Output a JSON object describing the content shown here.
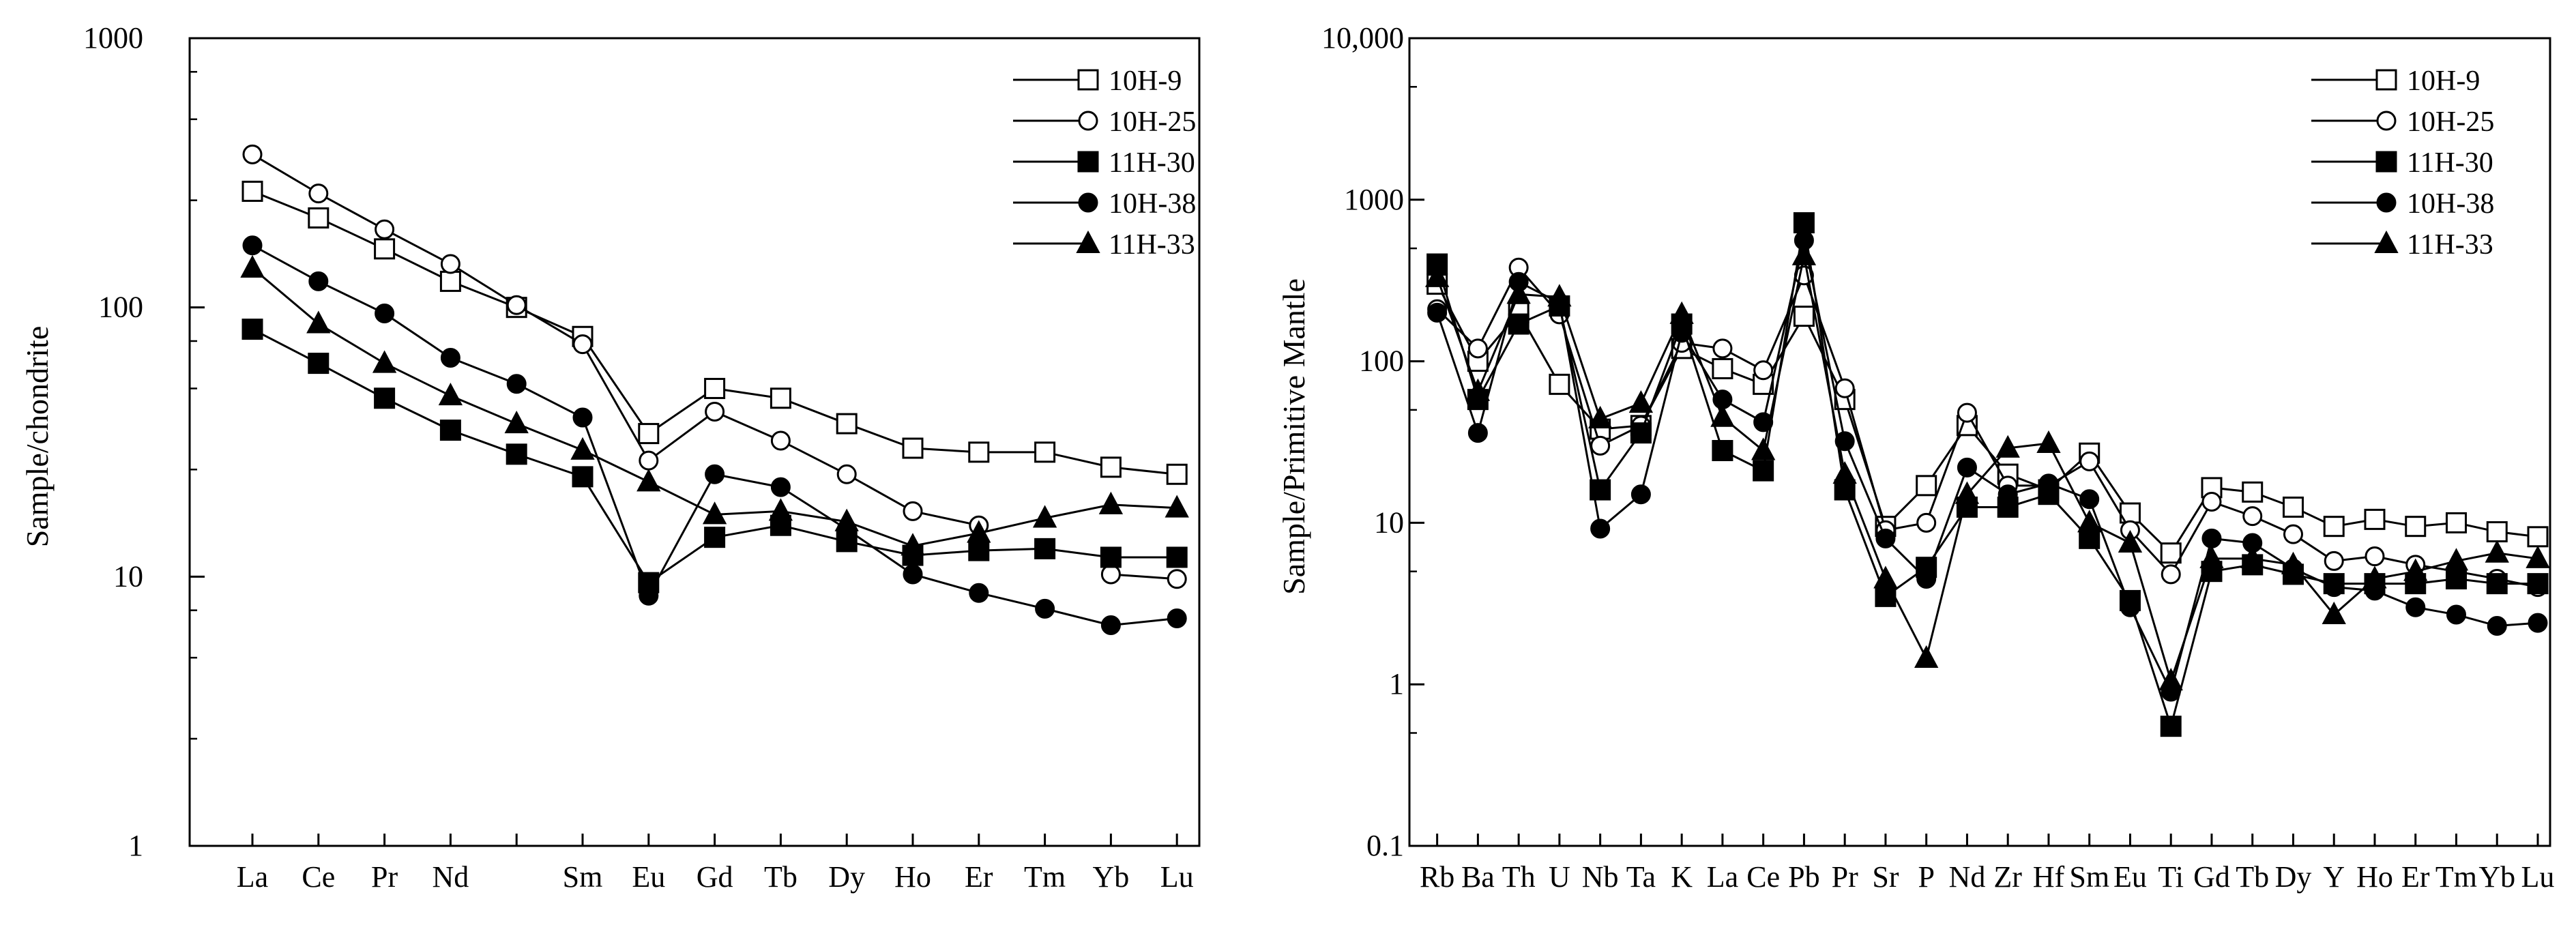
{
  "chart_data": [
    {
      "type": "line",
      "id": "ree",
      "title": "",
      "xlabel": "",
      "ylabel": "Sample/chondrite",
      "yscale": "log",
      "ylim": [
        1,
        1000
      ],
      "ytick_labels": [
        "1",
        "10",
        "100",
        "1000"
      ],
      "categories": [
        "La",
        "Ce",
        "Pr",
        "Nd",
        "",
        "Sm",
        "Eu",
        "Gd",
        "Tb",
        "Dy",
        "Ho",
        "Er",
        "Tm",
        "Yb",
        "Lu"
      ],
      "legend_position": "top-right",
      "series": [
        {
          "name": "10H-9",
          "marker": "open-square",
          "values": [
            270,
            215,
            165,
            125,
            100,
            78,
            34,
            50,
            46,
            37,
            30,
            29,
            29,
            25.5,
            24
          ]
        },
        {
          "name": "10H-25",
          "marker": "open-circle",
          "values": [
            370,
            265,
            195,
            145,
            102,
            73,
            27,
            41,
            32,
            24,
            17.5,
            15.5,
            null,
            10.2,
            9.8
          ]
        },
        {
          "name": "11H-30",
          "marker": "filled-square",
          "values": [
            83,
            62,
            46,
            35,
            28.5,
            23.5,
            9.5,
            14,
            15.5,
            13.5,
            12,
            12.5,
            12.7,
            11.8,
            11.8
          ]
        },
        {
          "name": "10H-38",
          "marker": "filled-circle",
          "values": [
            170,
            125,
            95,
            65,
            52,
            39,
            8.5,
            24,
            21.5,
            15,
            10.2,
            8.7,
            7.6,
            6.6,
            7
          ]
        },
        {
          "name": "11H-33",
          "marker": "filled-triangle",
          "values": [
            140,
            87,
            62,
            47,
            37,
            29.5,
            22.5,
            17,
            17.5,
            16,
            13,
            14.5,
            16.5,
            18.5,
            18
          ]
        }
      ]
    },
    {
      "type": "line",
      "id": "spider",
      "title": "",
      "xlabel": "",
      "ylabel": "Sample/Primitive Mantle",
      "yscale": "log",
      "ylim": [
        0.1,
        10000
      ],
      "ytick_labels": [
        "0.1",
        "1",
        "10",
        "100",
        "1000",
        "10,000"
      ],
      "categories": [
        "Rb",
        "Ba",
        "Th",
        "U",
        "Nb",
        "Ta",
        "K",
        "La",
        "Ce",
        "Pb",
        "Pr",
        "Sr",
        "P",
        "Nd",
        "Zr",
        "Hf",
        "Sm",
        "Eu",
        "Ti",
        "Gd",
        "Tb",
        "Dy",
        "Y",
        "Ho",
        "Er",
        "Tm",
        "Yb",
        "Lu"
      ],
      "legend_position": "top-right",
      "series": [
        {
          "name": "10H-9",
          "marker": "open-square",
          "values": [
            300,
            100,
            200,
            72,
            38,
            40,
            120,
            90,
            72,
            190,
            58,
            9.5,
            17,
            40,
            20,
            16,
            27,
            11.5,
            6.5,
            16.5,
            15.5,
            12.5,
            9.5,
            10.5,
            9.5,
            10,
            8.8,
            8.2
          ]
        },
        {
          "name": "10H-25",
          "marker": "open-circle",
          "values": [
            210,
            120,
            380,
            195,
            30,
            40,
            130,
            120,
            88,
            340,
            68,
            9,
            10,
            48,
            17,
            17,
            24,
            9,
            4.8,
            13.5,
            11,
            8.5,
            5.8,
            6.2,
            5.5,
            5,
            4.5,
            4
          ]
        },
        {
          "name": "11H-30",
          "marker": "filled-square",
          "values": [
            400,
            58,
            170,
            220,
            16,
            36,
            170,
            28,
            21,
            720,
            16,
            3.5,
            5.3,
            12.5,
            12.5,
            15,
            8,
            3.3,
            0.55,
            5,
            5.5,
            4.8,
            4.2,
            4.2,
            4.2,
            4.5,
            4.2,
            4.2
          ]
        },
        {
          "name": "10H-38",
          "marker": "filled-circle",
          "values": [
            200,
            36,
            310,
            230,
            9.2,
            15,
            150,
            58,
            42,
            560,
            32,
            8,
            4.5,
            22,
            15,
            17.5,
            14,
            3,
            0.9,
            8,
            7.5,
            5.2,
            4,
            3.8,
            3,
            2.7,
            2.3,
            2.4
          ]
        },
        {
          "name": "11H-33",
          "marker": "filled-triangle",
          "values": [
            330,
            65,
            260,
            250,
            44,
            55,
            195,
            45,
            28,
            450,
            20,
            4.5,
            1.45,
            15,
            29,
            31,
            10,
            7.5,
            1.05,
            6,
            6,
            5.5,
            2.7,
            4.5,
            5,
            5.8,
            6.5,
            6
          ]
        }
      ]
    }
  ]
}
